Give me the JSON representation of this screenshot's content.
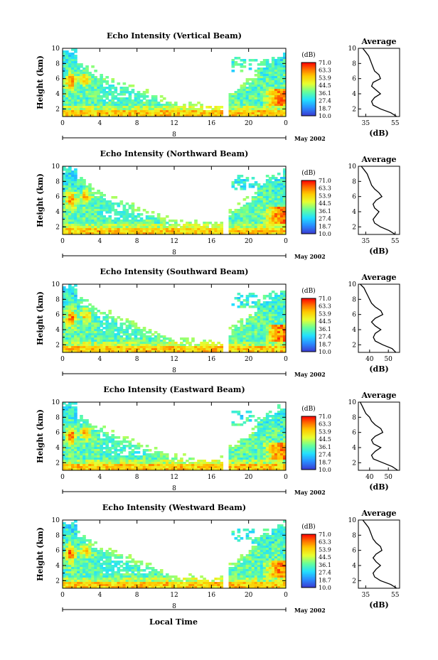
{
  "chart_data": {
    "type": "heatmap",
    "xlabel": "Local Time",
    "x_ticks": [
      "0",
      "4",
      "8",
      "12",
      "16",
      "20",
      "0"
    ],
    "date_label": "May 2002",
    "day_marker": "8",
    "ylabel": "Height (km)",
    "y_ticks": [
      "10",
      "8",
      "6",
      "4",
      "2"
    ],
    "ylim": [
      1,
      10
    ],
    "xlim": [
      0,
      24
    ],
    "colorbar": {
      "unit": "(dB)",
      "ticks": [
        "71.0",
        "63.3",
        "53.9",
        "44.5",
        "36.1",
        "27.4",
        "18.7",
        "10.0"
      ],
      "colors": [
        "#ff0000",
        "#ff6a00",
        "#ffc800",
        "#e8ff30",
        "#66ff99",
        "#22e0ff",
        "#2a8cff",
        "#3a3ad0"
      ]
    },
    "average_title": "Average",
    "average_xlabel": "(dB)",
    "panels": [
      {
        "title": "Echo Intensity (Vertical Beam)",
        "avg_ticks": [
          "35",
          "55"
        ],
        "avg_xlim": [
          30,
          58
        ],
        "avg_height_km": [
          1.0,
          1.5,
          2.0,
          2.5,
          3.0,
          3.5,
          4.0,
          4.5,
          5.0,
          5.5,
          6.0,
          6.5,
          7.0,
          7.5,
          8.0,
          8.5,
          9.0,
          9.5,
          10.0
        ],
        "avg_db": [
          56,
          52,
          45,
          40,
          39,
          41,
          45,
          42,
          39,
          40,
          45,
          44,
          41,
          40,
          39,
          38,
          37,
          35,
          33
        ]
      },
      {
        "title": "Echo Intensity (Northward Beam)",
        "avg_ticks": [
          "35",
          "55"
        ],
        "avg_xlim": [
          30,
          58
        ],
        "avg_height_km": [
          1.0,
          1.5,
          2.0,
          2.5,
          3.0,
          3.5,
          4.0,
          4.5,
          5.0,
          5.5,
          6.0,
          6.5,
          7.0,
          7.5,
          8.0,
          8.5,
          9.0,
          9.5,
          10.0
        ],
        "avg_db": [
          55,
          51,
          45,
          41,
          40,
          42,
          44,
          41,
          40,
          42,
          46,
          44,
          41,
          39,
          38,
          37,
          36,
          34,
          32
        ]
      },
      {
        "title": "Echo Intensity (Southward Beam)",
        "avg_ticks": [
          "40",
          "50"
        ],
        "avg_xlim": [
          34,
          56
        ],
        "avg_height_km": [
          1.0,
          1.5,
          2.0,
          2.5,
          3.0,
          3.5,
          4.0,
          4.5,
          5.0,
          5.5,
          6.0,
          6.5,
          7.0,
          7.5,
          8.0,
          8.5,
          9.0,
          9.5,
          10.0
        ],
        "avg_db": [
          54,
          52,
          47,
          43,
          42,
          43,
          46,
          43,
          41,
          43,
          47,
          46,
          43,
          41,
          40,
          39,
          38,
          37,
          35
        ]
      },
      {
        "title": "Echo Intensity (Eastward Beam)",
        "avg_ticks": [
          "40",
          "50"
        ],
        "avg_xlim": [
          34,
          56
        ],
        "avg_height_km": [
          1.0,
          1.5,
          2.0,
          2.5,
          3.0,
          3.5,
          4.0,
          4.5,
          5.0,
          5.5,
          6.0,
          6.5,
          7.0,
          7.5,
          8.0,
          8.5,
          9.0,
          9.5,
          10.0
        ],
        "avg_db": [
          55,
          52,
          47,
          42,
          41,
          43,
          46,
          42,
          41,
          43,
          47,
          46,
          43,
          41,
          40,
          38,
          37,
          36,
          35
        ]
      },
      {
        "title": "Echo Intensity (Westward Beam)",
        "avg_ticks": [
          "35",
          "55"
        ],
        "avg_xlim": [
          30,
          58
        ],
        "avg_height_km": [
          1.0,
          1.5,
          2.0,
          2.5,
          3.0,
          3.5,
          4.0,
          4.5,
          5.0,
          5.5,
          6.0,
          6.5,
          7.0,
          7.5,
          8.0,
          8.5,
          9.0,
          9.5,
          10.0
        ],
        "avg_db": [
          56,
          52,
          45,
          41,
          40,
          42,
          45,
          42,
          40,
          42,
          46,
          45,
          42,
          40,
          39,
          38,
          37,
          35,
          33
        ]
      }
    ]
  }
}
